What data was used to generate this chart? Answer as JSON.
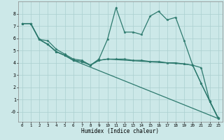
{
  "xlabel": "Humidex (Indice chaleur)",
  "bg_color": "#cce8e8",
  "line_color": "#2d7a6e",
  "grid_color": "#aacfcf",
  "xlim": [
    -0.5,
    23.5
  ],
  "ylim": [
    -0.8,
    9.0
  ],
  "xticks": [
    0,
    1,
    2,
    3,
    4,
    5,
    6,
    7,
    8,
    9,
    10,
    11,
    12,
    13,
    14,
    15,
    16,
    17,
    18,
    19,
    20,
    21,
    22,
    23
  ],
  "yticks": [
    0,
    1,
    2,
    3,
    4,
    5,
    6,
    7,
    8
  ],
  "ytick_labels": [
    "-0",
    "1",
    "2",
    "3",
    "4",
    "5",
    "6",
    "7",
    "8"
  ],
  "lines": [
    {
      "x": [
        0,
        1,
        2,
        3,
        4,
        5,
        6,
        7,
        8,
        9,
        10,
        11,
        12,
        13,
        14,
        15,
        16,
        17,
        18,
        19,
        20,
        21,
        22,
        23
      ],
      "y": [
        7.2,
        7.2,
        5.9,
        5.8,
        5.1,
        4.7,
        4.3,
        4.2,
        3.8,
        4.3,
        5.9,
        8.5,
        6.5,
        6.5,
        6.3,
        7.8,
        8.2,
        7.5,
        7.7,
        5.8,
        3.8,
        2.3,
        0.9,
        -0.5
      ]
    },
    {
      "x": [
        0,
        1,
        2,
        3,
        4,
        5,
        6,
        7,
        8,
        9,
        10,
        19,
        20,
        21,
        22,
        23
      ],
      "y": [
        7.2,
        7.2,
        5.9,
        5.5,
        4.9,
        4.6,
        4.2,
        4.1,
        3.8,
        4.2,
        4.3,
        3.9,
        3.8,
        3.6,
        0.85,
        -0.55
      ]
    },
    {
      "x": [
        0,
        1,
        2,
        3,
        4,
        5,
        6,
        23
      ],
      "y": [
        7.2,
        7.2,
        5.9,
        5.5,
        4.9,
        4.6,
        4.2,
        -0.55
      ]
    },
    {
      "x": [
        0,
        1,
        2,
        3,
        4,
        5,
        6,
        7,
        8,
        9,
        10,
        11,
        12,
        13,
        14,
        15,
        16,
        17,
        18,
        19,
        20,
        21,
        22,
        23
      ],
      "y": [
        7.2,
        7.2,
        5.9,
        5.5,
        4.9,
        4.6,
        4.2,
        4.1,
        3.8,
        4.2,
        4.3,
        4.3,
        4.3,
        4.2,
        4.2,
        4.1,
        4.1,
        4.0,
        4.0,
        3.9,
        3.8,
        2.3,
        0.85,
        -0.55
      ]
    }
  ]
}
